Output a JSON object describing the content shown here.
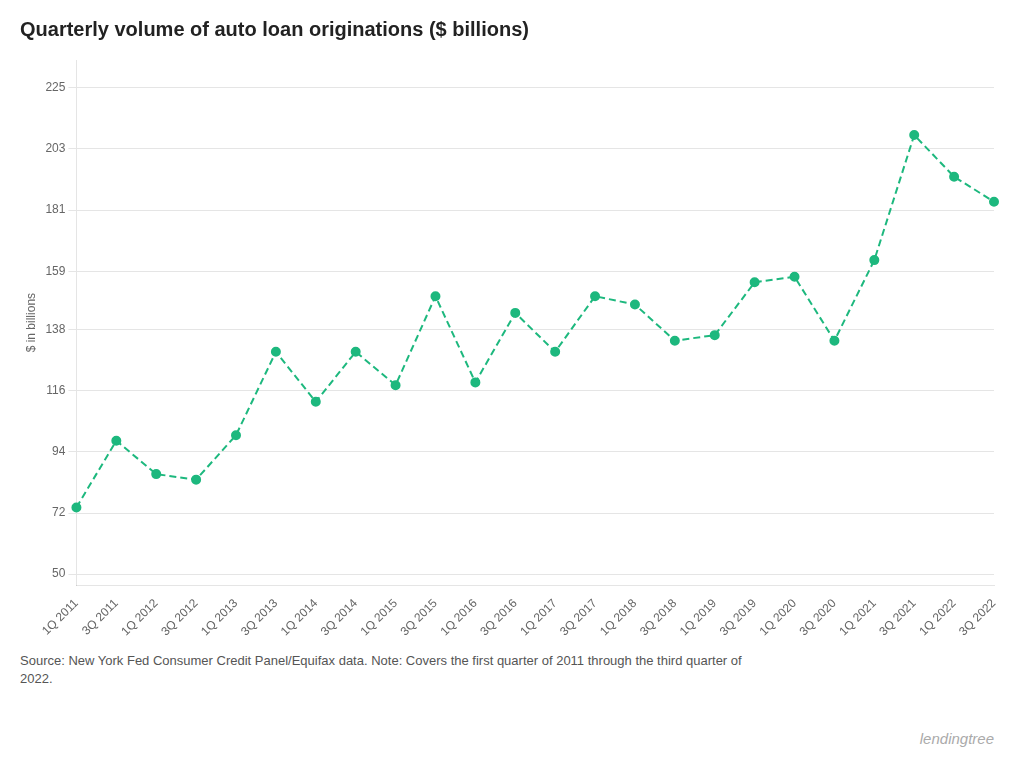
{
  "chart_data": {
    "type": "line",
    "title": "Quarterly volume of auto loan originations ($ billions)",
    "ylabel": "$ in billions",
    "annotations": [
      "Source: New York Fed Consumer Credit Panel/Equifax data. Note: Covers the first quarter of 2011 through the third quarter of\n2022.",
      "lendingtree"
    ],
    "categories": [
      "1Q 2011",
      "3Q 2011",
      "1Q 2012",
      "3Q 2012",
      "1Q 2013",
      "3Q 2013",
      "1Q 2014",
      "3Q 2014",
      "1Q 2015",
      "3Q 2015",
      "1Q 2016",
      "3Q 2016",
      "1Q 2017",
      "3Q 2017",
      "1Q 2018",
      "3Q 2018",
      "1Q 2019",
      "3Q 2019",
      "1Q 2020",
      "3Q 2020",
      "1Q 2021",
      "3Q 2021",
      "1Q 2022",
      "3Q 2022"
    ],
    "values": [
      74,
      98,
      86,
      84,
      100,
      130,
      112,
      130,
      118,
      150,
      119,
      144,
      130,
      150,
      147,
      134,
      136,
      155,
      157,
      134,
      163,
      208,
      193,
      184
    ],
    "color": "#1db87e",
    "line_style": "dashed",
    "marker": "circle",
    "ylim": [
      46,
      235
    ],
    "yticks": [
      50,
      72,
      94,
      116,
      138,
      159,
      181,
      203,
      225
    ],
    "grid": true
  }
}
